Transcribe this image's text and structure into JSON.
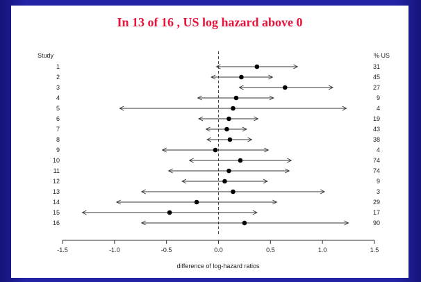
{
  "slide": {
    "title": "In 13 of 16 , US log hazard above 0"
  },
  "chart_data": {
    "type": "forest",
    "title": "In 13 of 16 , US log hazard above 0",
    "xlabel": "difference of log-hazard ratios",
    "left_column_header": "Study",
    "right_column_header": "% US",
    "xlim": [
      -1.5,
      1.5
    ],
    "xticks": [
      -1.5,
      -1.0,
      -0.5,
      0.0,
      0.5,
      1.0,
      1.5
    ],
    "xtick_labels": [
      "-1.5",
      "-1.0",
      "-0.5",
      "0.0",
      "0.5",
      "1.0",
      "1.5"
    ],
    "reference_line": 0,
    "studies": [
      {
        "study": "1",
        "estimate": 0.37,
        "lower": -0.02,
        "upper": 0.76,
        "pct_us": "31"
      },
      {
        "study": "2",
        "estimate": 0.22,
        "lower": -0.07,
        "upper": 0.52,
        "pct_us": "45"
      },
      {
        "study": "3",
        "estimate": 0.64,
        "lower": 0.2,
        "upper": 1.1,
        "pct_us": "27"
      },
      {
        "study": "4",
        "estimate": 0.17,
        "lower": -0.2,
        "upper": 0.53,
        "pct_us": "9"
      },
      {
        "study": "5",
        "estimate": 0.14,
        "lower": -0.95,
        "upper": 1.23,
        "pct_us": "4"
      },
      {
        "study": "6",
        "estimate": 0.1,
        "lower": -0.19,
        "upper": 0.38,
        "pct_us": "19"
      },
      {
        "study": "7",
        "estimate": 0.08,
        "lower": -0.12,
        "upper": 0.27,
        "pct_us": "43"
      },
      {
        "study": "8",
        "estimate": 0.11,
        "lower": -0.11,
        "upper": 0.32,
        "pct_us": "38"
      },
      {
        "study": "9",
        "estimate": -0.03,
        "lower": -0.54,
        "upper": 0.48,
        "pct_us": "4"
      },
      {
        "study": "10",
        "estimate": 0.21,
        "lower": -0.28,
        "upper": 0.7,
        "pct_us": "74"
      },
      {
        "study": "11",
        "estimate": 0.1,
        "lower": -0.48,
        "upper": 0.68,
        "pct_us": "74"
      },
      {
        "study": "12",
        "estimate": 0.06,
        "lower": -0.35,
        "upper": 0.47,
        "pct_us": "9"
      },
      {
        "study": "13",
        "estimate": 0.14,
        "lower": -0.74,
        "upper": 1.02,
        "pct_us": "3"
      },
      {
        "study": "14",
        "estimate": -0.21,
        "lower": -0.98,
        "upper": 0.56,
        "pct_us": "29"
      },
      {
        "study": "15",
        "estimate": -0.47,
        "lower": -1.31,
        "upper": 0.37,
        "pct_us": "17"
      },
      {
        "study": "16",
        "estimate": 0.25,
        "lower": -0.74,
        "upper": 1.25,
        "pct_us": "90"
      }
    ]
  }
}
